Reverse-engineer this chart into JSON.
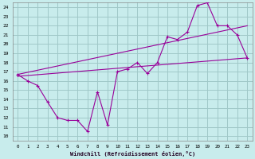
{
  "title": "",
  "xlabel": "Windchill (Refroidissement éolien,°C)",
  "ylabel": "",
  "bg_color": "#c8ecec",
  "grid_color": "#a0c8c8",
  "line_color": "#990099",
  "x_ticks": [
    0,
    1,
    2,
    3,
    4,
    5,
    6,
    7,
    8,
    9,
    10,
    11,
    12,
    13,
    14,
    15,
    16,
    17,
    18,
    19,
    20,
    21,
    22,
    23
  ],
  "y_ticks": [
    10,
    11,
    12,
    13,
    14,
    15,
    16,
    17,
    18,
    19,
    20,
    21,
    22,
    23,
    24
  ],
  "xlim": [
    -0.5,
    23.5
  ],
  "ylim": [
    9.5,
    24.5
  ],
  "line1_x": [
    0,
    1,
    2,
    3,
    4,
    5,
    6,
    7,
    8,
    9,
    10,
    11,
    12,
    13,
    14,
    15,
    16,
    17,
    18,
    19,
    20,
    21,
    22,
    23
  ],
  "line1_y": [
    16.7,
    16.0,
    15.5,
    13.7,
    12.0,
    11.7,
    11.7,
    10.5,
    14.8,
    11.2,
    17.0,
    17.3,
    18.0,
    16.8,
    18.0,
    20.8,
    20.5,
    21.3,
    24.2,
    24.5,
    22.0,
    22.0,
    21.0,
    18.5
  ],
  "line2_x": [
    0,
    23
  ],
  "line2_y": [
    16.5,
    18.5
  ],
  "line3_x": [
    0,
    23
  ],
  "line3_y": [
    16.7,
    22.0
  ]
}
